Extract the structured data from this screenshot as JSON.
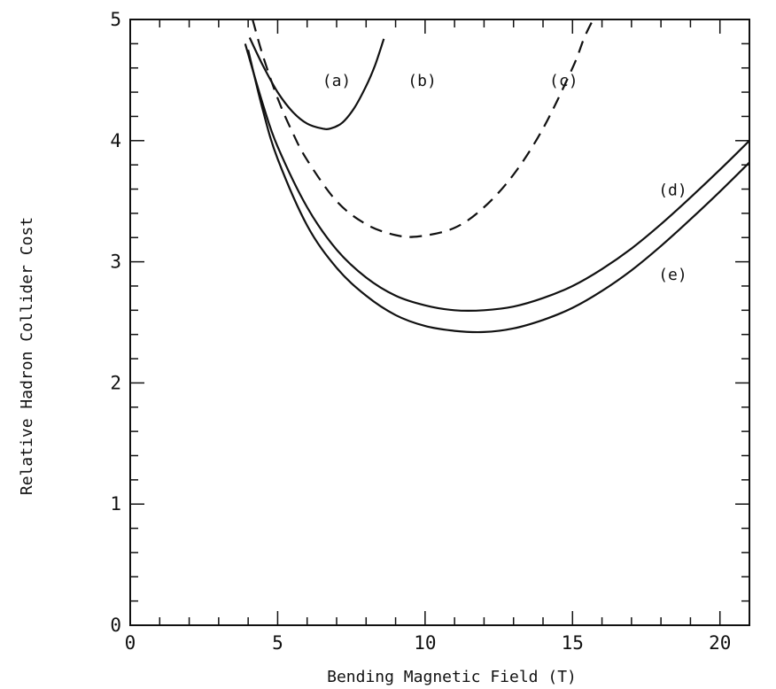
{
  "chart_data": {
    "type": "line",
    "title": "",
    "xlabel": "Bending Magnetic Field (T)",
    "ylabel": "Relative Hadron Collider Cost",
    "xlim": [
      0,
      21
    ],
    "ylim": [
      0,
      5
    ],
    "x_ticks": [
      "0",
      "5",
      "10",
      "15",
      "20"
    ],
    "y_ticks": [
      "0",
      "1",
      "2",
      "3",
      "4",
      "5"
    ],
    "grid": false,
    "legend": "none",
    "series": [
      {
        "name": "(a)",
        "style": "solid",
        "color": "#111111",
        "x": [
          4.05,
          4.5,
          5.0,
          5.5,
          6.0,
          6.5,
          6.8,
          7.2,
          7.6,
          8.0,
          8.3,
          8.6
        ],
        "y": [
          4.85,
          4.62,
          4.4,
          4.24,
          4.14,
          4.1,
          4.1,
          4.15,
          4.27,
          4.45,
          4.62,
          4.84
        ]
      },
      {
        "name": "(c)",
        "style": "dashed",
        "color": "#111111",
        "x": [
          4.15,
          4.5,
          5.0,
          5.5,
          6.0,
          7.0,
          8.0,
          9.0,
          9.8,
          11.0,
          12.0,
          13.0,
          14.0,
          15.0,
          15.4,
          15.7
        ],
        "y": [
          5.0,
          4.7,
          4.35,
          4.07,
          3.84,
          3.5,
          3.31,
          3.22,
          3.21,
          3.28,
          3.45,
          3.72,
          4.1,
          4.6,
          4.85,
          5.0
        ]
      },
      {
        "name": "(d)",
        "style": "solid",
        "color": "#111111",
        "x": [
          3.9,
          4.5,
          5.0,
          6.0,
          7.0,
          8.0,
          9.0,
          10.0,
          11.0,
          12.0,
          13.0,
          14.0,
          15.0,
          16.0,
          17.0,
          18.0,
          19.0,
          20.0,
          21.0
        ],
        "y": [
          4.8,
          4.3,
          3.95,
          3.45,
          3.1,
          2.87,
          2.72,
          2.64,
          2.6,
          2.6,
          2.63,
          2.7,
          2.8,
          2.94,
          3.11,
          3.31,
          3.53,
          3.76,
          4.0
        ]
      },
      {
        "name": "(e)",
        "style": "solid",
        "color": "#111111",
        "x": [
          4.0,
          4.5,
          5.0,
          6.0,
          7.0,
          8.0,
          9.0,
          10.0,
          11.0,
          12.0,
          13.0,
          14.0,
          15.0,
          16.0,
          17.0,
          18.0,
          19.0,
          20.0,
          21.0
        ],
        "y": [
          4.75,
          4.25,
          3.85,
          3.3,
          2.95,
          2.72,
          2.56,
          2.47,
          2.43,
          2.42,
          2.45,
          2.52,
          2.62,
          2.76,
          2.93,
          3.13,
          3.35,
          3.58,
          3.82
        ]
      }
    ],
    "annotations": [
      {
        "text": "(a)",
        "x": 7.0,
        "y": 4.45
      },
      {
        "text": "(b)",
        "x": 9.9,
        "y": 4.45
      },
      {
        "text": "(c)",
        "x": 14.7,
        "y": 4.45
      },
      {
        "text": "(d)",
        "x": 18.4,
        "y": 3.55
      },
      {
        "text": "(e)",
        "x": 18.4,
        "y": 2.85
      }
    ]
  }
}
